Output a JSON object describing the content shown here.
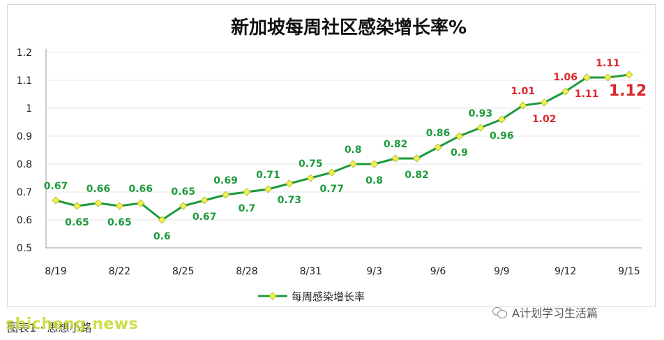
{
  "chart_data": {
    "type": "line",
    "title": "新加坡每周社区感染增长率%",
    "xlabel": "",
    "ylabel": "",
    "ylim": [
      0.5,
      1.2
    ],
    "yticks": [
      0.5,
      0.6,
      0.7,
      0.8,
      0.9,
      1,
      1.1,
      1.2
    ],
    "ytick_labels": [
      "0.5",
      "0.6",
      "0.7",
      "0.8",
      "0.9",
      "1",
      "1.1",
      "1.2"
    ],
    "x_tick_labels": [
      "8/19",
      "8/22",
      "8/25",
      "8/28",
      "8/31",
      "9/3",
      "9/6",
      "9/9",
      "9/12",
      "9/15"
    ],
    "categories": [
      "8/19",
      "8/20",
      "8/21",
      "8/22",
      "8/23",
      "8/24",
      "8/25",
      "8/26",
      "8/27",
      "8/28",
      "8/29",
      "8/30",
      "8/31",
      "9/1",
      "9/2",
      "9/3",
      "9/4",
      "9/5",
      "9/6",
      "9/7",
      "9/8",
      "9/9",
      "9/10",
      "9/11",
      "9/12",
      "9/13",
      "9/14",
      "9/15"
    ],
    "grid": true,
    "legend_position": "bottom",
    "series": [
      {
        "name": "每周感染增长率",
        "color": "#1e9a3c",
        "marker_color": "#f0f050",
        "values": [
          0.67,
          0.65,
          0.66,
          0.65,
          0.66,
          0.6,
          0.65,
          0.67,
          0.69,
          0.7,
          0.71,
          0.73,
          0.75,
          0.77,
          0.8,
          0.8,
          0.82,
          0.82,
          0.86,
          0.9,
          0.93,
          0.96,
          1.01,
          1.02,
          1.06,
          1.11,
          1.11,
          1.12
        ],
        "data_labels": [
          "0.67",
          "0.65",
          "0.66",
          "0.65",
          "0.66",
          "0.6",
          "0.65",
          "0.67",
          "0.69",
          "0.7",
          "0.71",
          "0.73",
          "0.75",
          "0.77",
          "0.8",
          "0.8",
          "0.82",
          "0.82",
          "0.86",
          "0.9",
          "0.93",
          "0.96",
          "1.01",
          "1.02",
          "1.06",
          "1.11",
          "1.11",
          "1.12"
        ]
      }
    ]
  },
  "footer": {
    "caption": "图表1 · 思想小路",
    "watermark_left": "shicheng.news",
    "watermark_right": "A计划学习生活篇"
  },
  "colors": {
    "label_green": "#1e9a3c",
    "label_red": "#d9262a",
    "line": "#1e9a3c",
    "marker": "#f0f050"
  }
}
